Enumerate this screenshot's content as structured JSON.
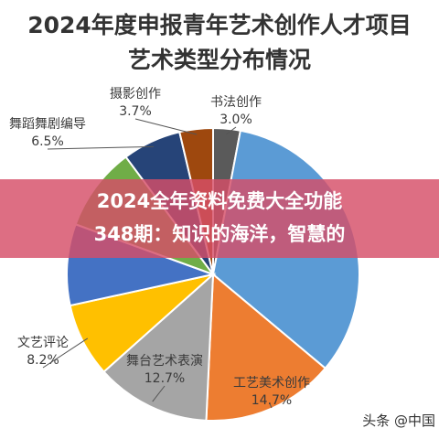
{
  "chart_data": {
    "type": "pie",
    "title_lines": [
      "2024年度申报青年艺术创作人才项目",
      "艺术类型分布情况"
    ],
    "slices": [
      {
        "label": "书法创作",
        "value": 3.0,
        "value_text": "3.0%",
        "color": "#5a5a5a"
      },
      {
        "label": "",
        "value": 33.2,
        "value_text": "",
        "color": "#5b9bd5"
      },
      {
        "label": "工艺美术创作",
        "value": 14.7,
        "value_text": "14.7%",
        "color": "#ed7d31"
      },
      {
        "label": "舞台艺术表演",
        "value": 12.7,
        "value_text": "12.7%",
        "color": "#a5a5a5"
      },
      {
        "label": "文艺评论",
        "value": 8.2,
        "value_text": "8.2%",
        "color": "#ffc000"
      },
      {
        "label": "",
        "value": 9.0,
        "value_text": "",
        "color": "#4472c4"
      },
      {
        "label": "",
        "value": 9.3,
        "value_text": "",
        "color": "#70ad47"
      },
      {
        "label": "舞蹈舞剧编导",
        "value": 6.5,
        "value_text": "6.5%",
        "color": "#264478"
      },
      {
        "label": "摄影创作",
        "value": 3.7,
        "value_text": "3.7%",
        "color": "#9e480e"
      }
    ]
  },
  "overlay": {
    "line1": "2024全年资料免费大全功能",
    "line2": "348期：知识的海洋，智慧的"
  },
  "watermark": "头条 @中国"
}
